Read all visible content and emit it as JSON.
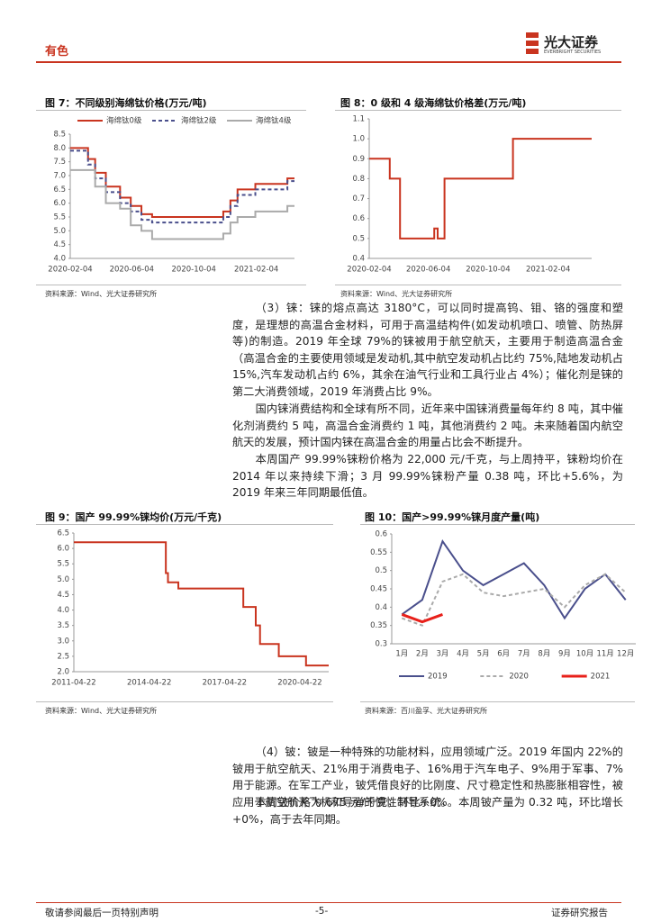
{
  "header": {
    "section": "有色",
    "brand": "光大证券",
    "brand_en": "EVERBRIGHT SECURITIES"
  },
  "chart_data": [
    {
      "type": "line",
      "step": true,
      "title": "图 7：不同级别海绵钛价格(万元/吨)",
      "legend": "top",
      "x": [
        "2020-02-04",
        "2020-03-10",
        "2020-03-24",
        "2020-04-14",
        "2020-05-12",
        "2020-06-02",
        "2020-06-23",
        "2020-07-14",
        "2020-12-01",
        "2020-12-15",
        "2020-12-29",
        "2021-02-02",
        "2021-04-06",
        "2021-04-20"
      ],
      "xlim": [
        "2020-02-04",
        "2021-04-20"
      ],
      "xticks": [
        "2020-02-04",
        "2020-06-04",
        "2020-10-04",
        "2021-02-04"
      ],
      "ylim": [
        4,
        8.5
      ],
      "yticks": [
        {
          "value": 4,
          "label": "4.0"
        },
        4.5,
        {
          "value": 5,
          "label": "5.0"
        },
        5.5,
        {
          "value": 6,
          "label": "6.0"
        },
        6.5,
        {
          "value": 7,
          "label": "7.0"
        },
        7.5,
        {
          "value": 8,
          "label": "8.0"
        },
        8.5
      ],
      "series": [
        {
          "name": "海绵钛0级",
          "color": "#c9341f",
          "values": [
            8.0,
            7.6,
            7.1,
            6.6,
            6.2,
            5.9,
            5.6,
            5.5,
            5.7,
            6.1,
            6.5,
            6.7,
            6.9,
            6.9
          ]
        },
        {
          "name": "海绵钛2级",
          "color": "#4a4f8c",
          "dash": true,
          "values": [
            7.9,
            7.4,
            6.9,
            6.4,
            6.0,
            5.7,
            5.4,
            5.3,
            5.5,
            5.9,
            6.3,
            6.5,
            6.8,
            6.8
          ]
        },
        {
          "name": "海绵钛4级",
          "color": "#aaaaaa",
          "values": [
            7.2,
            7.2,
            6.6,
            6.0,
            5.8,
            5.2,
            5.0,
            4.7,
            4.9,
            5.3,
            5.5,
            5.7,
            5.9,
            5.9
          ]
        }
      ]
    },
    {
      "type": "line",
      "step": true,
      "title": "图 8：0 级和 4 级海绵钛价格差(万元/吨)",
      "color": "#c9341f",
      "x": [
        "2020-02-04",
        "2020-03-17",
        "2020-04-07",
        "2020-06-16",
        "2020-06-23",
        "2020-07-07",
        "2020-11-24",
        "2021-05-04"
      ],
      "values": [
        0.9,
        0.8,
        0.5,
        0.55,
        0.5,
        0.8,
        1.0,
        1.0
      ],
      "xlim": [
        "2020-02-04",
        "2021-05-04"
      ],
      "xticks": [
        "2020-02-04",
        "2020-06-04",
        "2020-10-04",
        "2021-02-04"
      ],
      "ylim": [
        0.4,
        1.1
      ],
      "yticks": [
        0.4,
        0.5,
        0.6,
        0.7,
        0.8,
        0.9,
        {
          "value": 1,
          "label": "1.0"
        },
        1.1
      ]
    },
    {
      "type": "line",
      "step": true,
      "title": "图 9：国产 99.99%铼均价(万元/千克)",
      "color": "#c9341f",
      "x": [
        "2011-04-22",
        "2014-12-20",
        "2015-01-20",
        "2015-06-20",
        "2015-10-20",
        "2018-01-20",
        "2018-07-20",
        "2018-09-20",
        "2019-06-20",
        "2020-07-20",
        "2021-06-15"
      ],
      "values": [
        6.2,
        5.2,
        4.9,
        4.7,
        4.7,
        4.1,
        3.5,
        2.9,
        2.5,
        2.2,
        2.2
      ],
      "xlim": [
        "2011-04-22",
        "2021-06-15"
      ],
      "xticks": [
        "2011-04-22",
        "2014-04-22",
        "2017-04-22",
        "2020-04-22"
      ],
      "ylim": [
        2,
        6.5
      ],
      "yticks": [
        {
          "value": 2,
          "label": "2.0"
        },
        2.5,
        {
          "value": 3,
          "label": "3.0"
        },
        3.5,
        {
          "value": 4,
          "label": "4.0"
        },
        4.5,
        {
          "value": 5,
          "label": "5.0"
        },
        5.5,
        {
          "value": 6,
          "label": "6.0"
        },
        6.5
      ]
    },
    {
      "type": "line",
      "title": "图 10：国产>99.99%铼月度产量(吨)",
      "legend": "bottom",
      "categories": [
        "1月",
        "2月",
        "3月",
        "4月",
        "5月",
        "6月",
        "7月",
        "8月",
        "9月",
        "10月",
        "11月",
        "12月"
      ],
      "ylim": [
        0.3,
        0.6
      ],
      "yticks": [
        0.3,
        0.35,
        0.4,
        0.45,
        0.5,
        0.55,
        0.6
      ],
      "series": [
        {
          "name": "2019",
          "color": "#4a4f8c",
          "values": [
            0.38,
            0.42,
            0.58,
            0.5,
            0.46,
            0.49,
            0.52,
            0.46,
            0.37,
            0.45,
            0.49,
            0.42
          ]
        },
        {
          "name": "2020",
          "color": "#aaaaaa",
          "dash": true,
          "values": [
            0.37,
            0.35,
            0.47,
            0.49,
            0.44,
            0.43,
            0.44,
            0.45,
            0.4,
            0.46,
            0.49,
            0.44
          ]
        },
        {
          "name": "2021",
          "color": "#e8201a",
          "width": 3,
          "values": [
            0.38,
            0.36,
            0.38,
            null,
            null,
            null,
            null,
            null,
            null,
            null,
            null,
            null
          ]
        }
      ]
    }
  ],
  "sources": [
    "资料来源：Wind、光大证券研究所",
    "资料来源：Wind、光大证券研究所",
    "资料来源：Wind、光大证券研究所",
    "资料来源：百川盈孚、光大证券研究所"
  ],
  "paragraphs": [
    "（3）铼：铼的熔点高达 3180°C，可以同时提高钨、钼、铬的强度和塑度，是理想的高温合金材料，可用于高温结构件(如发动机喷口、喷管、防热屏等)的制造。2019 年全球 79%的铼被用于航空航天，主要用于制造高温合金（高温合金的主要使用领域是发动机,其中航空发动机占比约 75%,陆地发动机占 15%,汽车发动机占约 6%，其余在油气行业和工具行业占 4%）；催化剂是铼的第二大消费领域，2019 年消费占比 9%。",
    "国内铼消费结构和全球有所不同，近年来中国铼消费量每年约 8 吨，其中催化剂消费约 5 吨，高温合金消费约 1 吨，其他消费约 2 吨。未来随着国内航空航天的发展，预计国内铼在高温合金的用量占比会不断提升。",
    "本周国产 99.99%铼粉价格为 22,000 元/千克，与上周持平，铼粉均价在 2014 年以来持续下滑；3 月 99.99%铼粉产量 0.38 吨，环比+5.6%，为 2019 年来三年同期最低值。",
    "（4）铍：铍是一种特殊的功能材料，应用领域广泛。2019 年国内 22%的铍用于航空航天、21%用于消费电子、16%用于汽车电子、9%用于军事、7%用于能源。在军工产业，铍凭借良好的比刚度、尺寸稳定性和热膨胀相容性，被应用于航空航天飞机和导弹的惯性制导系统。",
    "本周铍价格为 675 元/千克，环比+0%。本周铍产量为 0.32 吨，环比增长+0%，高于去年同期。"
  ],
  "footer": {
    "left": "敬请参阅最后一页特别声明",
    "center": "-5-",
    "right": "证券研究报告"
  }
}
